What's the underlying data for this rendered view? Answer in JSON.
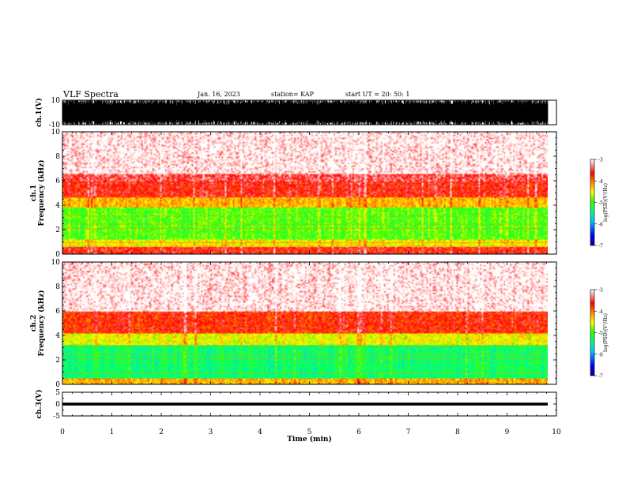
{
  "header": {
    "title": "VLF Spectra",
    "date": "Jan. 16, 2023",
    "station": "station= KAP",
    "start": "start  UT  =   20: 50: 1"
  },
  "chart_data": [
    {
      "type": "line",
      "panel": "ch1-waveform",
      "ylabel": "ch.1(V)",
      "ylim": [
        -10,
        10
      ],
      "ytick_labels": [
        "10",
        "-10"
      ],
      "xlim": [
        0,
        10
      ],
      "color": "#000000"
    },
    {
      "type": "heatmap",
      "panel": "ch1-spectrogram",
      "ylabel_line1": "ch.1",
      "ylabel_line2": "Frequency  (kHz)",
      "ylim": [
        0,
        10
      ],
      "yticks": [
        0,
        2,
        4,
        6,
        8,
        10
      ],
      "xlim": [
        0,
        10
      ],
      "color_bands_khz": [
        {
          "from": 0.0,
          "to": 0.6,
          "level": -3.6
        },
        {
          "from": 0.6,
          "to": 1.2,
          "level": -4.4
        },
        {
          "from": 1.2,
          "to": 3.8,
          "level": -4.9
        },
        {
          "from": 3.8,
          "to": 4.6,
          "level": -4.2
        },
        {
          "from": 4.6,
          "to": 6.5,
          "level": -3.6
        },
        {
          "from": 6.5,
          "to": 10.0,
          "level": -3.2
        }
      ],
      "colorbar": {
        "label": "log(PSD)(V²/Hz)",
        "ticks": [
          "-3",
          "-4",
          "-5",
          "-6",
          "-7"
        ],
        "range": [
          -7,
          -3
        ]
      }
    },
    {
      "type": "heatmap",
      "panel": "ch2-spectrogram",
      "ylabel_line1": "ch.2",
      "ylabel_line2": "Frequency  (kHz)",
      "ylim": [
        0,
        10
      ],
      "yticks": [
        0,
        2,
        4,
        6,
        8,
        10
      ],
      "xlim": [
        0,
        10
      ],
      "color_bands_khz": [
        {
          "from": 0.0,
          "to": 0.5,
          "level": -4.2
        },
        {
          "from": 0.5,
          "to": 3.2,
          "level": -5.3
        },
        {
          "from": 3.2,
          "to": 4.2,
          "level": -4.5
        },
        {
          "from": 4.2,
          "to": 6.0,
          "level": -3.7
        },
        {
          "from": 6.0,
          "to": 10.0,
          "level": -3.2
        }
      ],
      "colorbar": {
        "label": "log(PSD)(V²/Hz)",
        "ticks": [
          "-3",
          "-4",
          "-5",
          "-6",
          "-7"
        ],
        "range": [
          -7,
          -3
        ]
      }
    },
    {
      "type": "line",
      "panel": "ch3-waveform",
      "ylabel": "ch.3(V)",
      "ylim": [
        -5,
        5
      ],
      "ytick_labels": [
        "5",
        "0",
        "-5"
      ],
      "band": [
        -0.6,
        0.6
      ],
      "xlim": [
        0,
        10
      ],
      "xticks": [
        0,
        1,
        2,
        3,
        4,
        5,
        6,
        7,
        8,
        9,
        10
      ],
      "xlabel": "Time  (min)",
      "color": "#000000"
    }
  ]
}
